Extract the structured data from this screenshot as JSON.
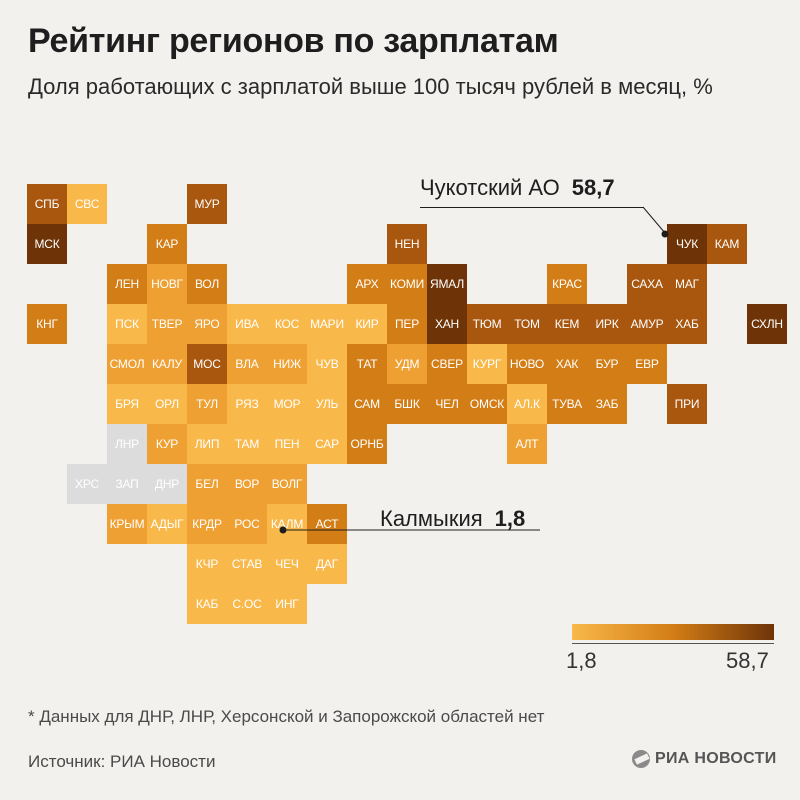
{
  "header": {
    "title": "Рейтинг регионов по зарплатам",
    "subtitle": "Доля работающих с зарплатой выше 100 тысяч рублей в месяц, %"
  },
  "colors": {
    "no_data": "#dcdcdc",
    "scale": [
      "#f8b84a",
      "#eea033",
      "#d37d16",
      "#a9560f",
      "#6e3408"
    ],
    "text_on_tile": "#ffffff"
  },
  "regions": [
    {
      "code": "СПБ",
      "row": 0,
      "col": 0,
      "level": 3
    },
    {
      "code": "СВС",
      "row": 0,
      "col": 1,
      "level": 0
    },
    {
      "code": "МУР",
      "row": 0,
      "col": 4,
      "level": 3
    },
    {
      "code": "МСК",
      "row": 1,
      "col": 0,
      "level": 4
    },
    {
      "code": "КАР",
      "row": 1,
      "col": 3,
      "level": 2
    },
    {
      "code": "НЕН",
      "row": 1,
      "col": 9,
      "level": 3
    },
    {
      "code": "ЧУК",
      "row": 1,
      "col": 16,
      "level": 4
    },
    {
      "code": "КАМ",
      "row": 1,
      "col": 17,
      "level": 3
    },
    {
      "code": "ЛЕН",
      "row": 2,
      "col": 2,
      "level": 2
    },
    {
      "code": "НОВГ",
      "row": 2,
      "col": 3,
      "level": 1
    },
    {
      "code": "ВОЛ",
      "row": 2,
      "col": 4,
      "level": 2
    },
    {
      "code": "АРХ",
      "row": 2,
      "col": 8,
      "level": 2
    },
    {
      "code": "КОМИ",
      "row": 2,
      "col": 9,
      "level": 2
    },
    {
      "code": "ЯМАЛ",
      "row": 2,
      "col": 10,
      "level": 4
    },
    {
      "code": "КРАС",
      "row": 2,
      "col": 13,
      "level": 2
    },
    {
      "code": "САХА",
      "row": 2,
      "col": 15,
      "level": 3
    },
    {
      "code": "МАГ",
      "row": 2,
      "col": 16,
      "level": 3
    },
    {
      "code": "КНГ",
      "row": 3,
      "col": 0,
      "level": 2
    },
    {
      "code": "ПСК",
      "row": 3,
      "col": 2,
      "level": 0
    },
    {
      "code": "ТВЕР",
      "row": 3,
      "col": 3,
      "level": 1
    },
    {
      "code": "ЯРО",
      "row": 3,
      "col": 4,
      "level": 1
    },
    {
      "code": "ИВА",
      "row": 3,
      "col": 5,
      "level": 0
    },
    {
      "code": "КОС",
      "row": 3,
      "col": 6,
      "level": 0
    },
    {
      "code": "МАРИ",
      "row": 3,
      "col": 7,
      "level": 0
    },
    {
      "code": "КИР",
      "row": 3,
      "col": 8,
      "level": 0
    },
    {
      "code": "ПЕР",
      "row": 3,
      "col": 9,
      "level": 2
    },
    {
      "code": "ХАН",
      "row": 3,
      "col": 10,
      "level": 4
    },
    {
      "code": "ТЮМ",
      "row": 3,
      "col": 11,
      "level": 3
    },
    {
      "code": "ТОМ",
      "row": 3,
      "col": 12,
      "level": 3
    },
    {
      "code": "КЕМ",
      "row": 3,
      "col": 13,
      "level": 3
    },
    {
      "code": "ИРК",
      "row": 3,
      "col": 14,
      "level": 3
    },
    {
      "code": "АМУР",
      "row": 3,
      "col": 15,
      "level": 3
    },
    {
      "code": "ХАБ",
      "row": 3,
      "col": 16,
      "level": 3
    },
    {
      "code": "СХЛН",
      "row": 3,
      "col": 18,
      "level": 4
    },
    {
      "code": "СМОЛ",
      "row": 4,
      "col": 2,
      "level": 1
    },
    {
      "code": "КАЛУ",
      "row": 4,
      "col": 3,
      "level": 1
    },
    {
      "code": "МОС",
      "row": 4,
      "col": 4,
      "level": 3
    },
    {
      "code": "ВЛА",
      "row": 4,
      "col": 5,
      "level": 1
    },
    {
      "code": "НИЖ",
      "row": 4,
      "col": 6,
      "level": 1
    },
    {
      "code": "ЧУВ",
      "row": 4,
      "col": 7,
      "level": 0
    },
    {
      "code": "ТАТ",
      "row": 4,
      "col": 8,
      "level": 2
    },
    {
      "code": "УДМ",
      "row": 4,
      "col": 9,
      "level": 1
    },
    {
      "code": "СВЕР",
      "row": 4,
      "col": 10,
      "level": 2
    },
    {
      "code": "КУРГ",
      "row": 4,
      "col": 11,
      "level": 0
    },
    {
      "code": "НОВО",
      "row": 4,
      "col": 12,
      "level": 2
    },
    {
      "code": "ХАК",
      "row": 4,
      "col": 13,
      "level": 2
    },
    {
      "code": "БУР",
      "row": 4,
      "col": 14,
      "level": 2
    },
    {
      "code": "ЕВР",
      "row": 4,
      "col": 15,
      "level": 2
    },
    {
      "code": "БРЯ",
      "row": 5,
      "col": 2,
      "level": 0
    },
    {
      "code": "ОРЛ",
      "row": 5,
      "col": 3,
      "level": 0
    },
    {
      "code": "ТУЛ",
      "row": 5,
      "col": 4,
      "level": 1
    },
    {
      "code": "РЯЗ",
      "row": 5,
      "col": 5,
      "level": 0
    },
    {
      "code": "МОР",
      "row": 5,
      "col": 6,
      "level": 0
    },
    {
      "code": "УЛЬ",
      "row": 5,
      "col": 7,
      "level": 0
    },
    {
      "code": "САМ",
      "row": 5,
      "col": 8,
      "level": 2
    },
    {
      "code": "БШК",
      "row": 5,
      "col": 9,
      "level": 2
    },
    {
      "code": "ЧЕЛ",
      "row": 5,
      "col": 10,
      "level": 2
    },
    {
      "code": "ОМСК",
      "row": 5,
      "col": 11,
      "level": 2
    },
    {
      "code": "АЛ.К",
      "row": 5,
      "col": 12,
      "level": 0
    },
    {
      "code": "ТУВА",
      "row": 5,
      "col": 13,
      "level": 2
    },
    {
      "code": "ЗАБ",
      "row": 5,
      "col": 14,
      "level": 2
    },
    {
      "code": "ПРИ",
      "row": 5,
      "col": 16,
      "level": 3
    },
    {
      "code": "ЛНР",
      "row": 6,
      "col": 2,
      "level": -1
    },
    {
      "code": "КУР",
      "row": 6,
      "col": 3,
      "level": 1
    },
    {
      "code": "ЛИП",
      "row": 6,
      "col": 4,
      "level": 0
    },
    {
      "code": "ТАМ",
      "row": 6,
      "col": 5,
      "level": 0
    },
    {
      "code": "ПЕН",
      "row": 6,
      "col": 6,
      "level": 0
    },
    {
      "code": "САР",
      "row": 6,
      "col": 7,
      "level": 0
    },
    {
      "code": "ОРНБ",
      "row": 6,
      "col": 8,
      "level": 2
    },
    {
      "code": "АЛТ",
      "row": 6,
      "col": 12,
      "level": 1
    },
    {
      "code": "ХРС",
      "row": 7,
      "col": 1,
      "level": -1
    },
    {
      "code": "ЗАП",
      "row": 7,
      "col": 2,
      "level": -1
    },
    {
      "code": "ДНР",
      "row": 7,
      "col": 3,
      "level": -1
    },
    {
      "code": "БЕЛ",
      "row": 7,
      "col": 4,
      "level": 1
    },
    {
      "code": "ВОР",
      "row": 7,
      "col": 5,
      "level": 1
    },
    {
      "code": "ВОЛГ",
      "row": 7,
      "col": 6,
      "level": 1
    },
    {
      "code": "КРЫМ",
      "row": 8,
      "col": 2,
      "level": 1
    },
    {
      "code": "АДЫГ",
      "row": 8,
      "col": 3,
      "level": 0
    },
    {
      "code": "КРДР",
      "row": 8,
      "col": 4,
      "level": 1
    },
    {
      "code": "РОС",
      "row": 8,
      "col": 5,
      "level": 1
    },
    {
      "code": "КАЛМ",
      "row": 8,
      "col": 6,
      "level": 0
    },
    {
      "code": "АСТ",
      "row": 8,
      "col": 7,
      "level": 2
    },
    {
      "code": "КЧР",
      "row": 9,
      "col": 4,
      "level": 0
    },
    {
      "code": "СТАВ",
      "row": 9,
      "col": 5,
      "level": 0
    },
    {
      "code": "ЧЕЧ",
      "row": 9,
      "col": 6,
      "level": 0
    },
    {
      "code": "ДАГ",
      "row": 9,
      "col": 7,
      "level": 0
    },
    {
      "code": "КАБ",
      "row": 10,
      "col": 4,
      "level": 0
    },
    {
      "code": "С.ОС",
      "row": 10,
      "col": 5,
      "level": 0
    },
    {
      "code": "ИНГ",
      "row": 10,
      "col": 6,
      "level": 0
    }
  ],
  "callouts": {
    "max": {
      "name": "Чукотский АО",
      "value": "58,7"
    },
    "min": {
      "name": "Калмыкия",
      "value": "1,8"
    }
  },
  "legend": {
    "min_label": "1,8",
    "max_label": "58,7",
    "min_value": 1.8,
    "max_value": 58.7
  },
  "footer": {
    "footnote": "* Данных для ДНР, ЛНР, Херсонской и Запорожской областей нет",
    "source": "Источник: РИА Новости",
    "logo": "РИА НОВОСТИ"
  }
}
